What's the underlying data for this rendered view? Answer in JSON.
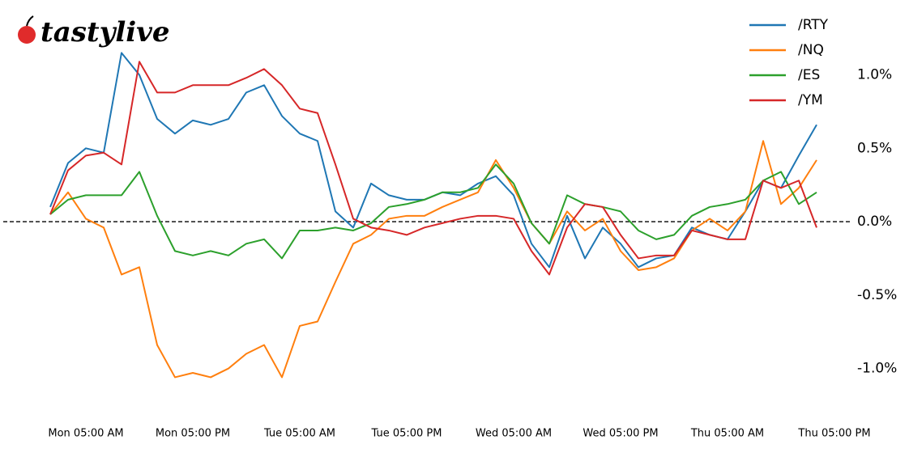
{
  "brand": "tastylive",
  "chart_data": {
    "type": "line",
    "categories": [
      null,
      null,
      "Mon 05:00 AM",
      null,
      null,
      null,
      null,
      null,
      "Mon 05:00 PM",
      null,
      null,
      null,
      null,
      null,
      "Tue 05:00 AM",
      null,
      null,
      null,
      null,
      null,
      "Tue 05:00 PM",
      null,
      null,
      null,
      null,
      null,
      "Wed 05:00 AM",
      null,
      null,
      null,
      null,
      null,
      "Wed 05:00 PM",
      null,
      null,
      null,
      null,
      null,
      "Thu 05:00 AM",
      null,
      null,
      null,
      null,
      null,
      "Thu 05:00 PM"
    ],
    "series": [
      {
        "name": "/RTY",
        "color": "#1f77b4",
        "values": [
          0.1,
          0.4,
          0.5,
          0.47,
          1.15,
          1.0,
          0.7,
          0.6,
          0.69,
          0.66,
          0.7,
          0.88,
          0.93,
          0.72,
          0.6,
          0.55,
          0.07,
          -0.04,
          0.26,
          0.18,
          0.15,
          0.15,
          0.2,
          0.18,
          0.26,
          0.31,
          0.18,
          -0.15,
          -0.31,
          0.04,
          -0.25,
          -0.04,
          -0.15,
          -0.31,
          -0.25,
          -0.23,
          -0.04,
          -0.09,
          -0.12,
          0.07,
          0.28,
          0.23,
          0.45,
          0.66,
          null
        ]
      },
      {
        "name": "/NQ",
        "color": "#ff7f0e",
        "values": [
          0.05,
          0.2,
          0.02,
          -0.04,
          -0.36,
          -0.31,
          -0.84,
          -1.06,
          -1.03,
          -1.06,
          -1.0,
          -0.9,
          -0.84,
          -1.06,
          -0.71,
          -0.68,
          -0.41,
          -0.15,
          -0.09,
          0.02,
          0.04,
          0.04,
          0.1,
          0.15,
          0.2,
          0.42,
          0.23,
          -0.01,
          -0.15,
          0.07,
          -0.06,
          0.02,
          -0.2,
          -0.33,
          -0.31,
          -0.25,
          -0.06,
          0.02,
          -0.06,
          0.07,
          0.55,
          0.12,
          0.23,
          0.42,
          null
        ]
      },
      {
        "name": "/ES",
        "color": "#2ca02c",
        "values": [
          0.05,
          0.15,
          0.18,
          0.18,
          0.18,
          0.34,
          0.04,
          -0.2,
          -0.23,
          -0.2,
          -0.23,
          -0.15,
          -0.12,
          -0.25,
          -0.06,
          -0.06,
          -0.04,
          -0.06,
          -0.01,
          0.1,
          0.12,
          0.15,
          0.2,
          0.2,
          0.23,
          0.39,
          0.26,
          -0.01,
          -0.15,
          0.18,
          0.12,
          0.1,
          0.07,
          -0.06,
          -0.12,
          -0.09,
          0.04,
          0.1,
          0.12,
          0.15,
          0.28,
          0.34,
          0.12,
          0.2,
          null
        ]
      },
      {
        "name": "/YM",
        "color": "#d62728",
        "values": [
          0.05,
          0.35,
          0.45,
          0.47,
          0.39,
          1.09,
          0.88,
          0.88,
          0.93,
          0.93,
          0.93,
          0.98,
          1.04,
          0.93,
          0.77,
          0.74,
          0.39,
          0.02,
          -0.04,
          -0.06,
          -0.09,
          -0.04,
          -0.01,
          0.02,
          0.04,
          0.04,
          0.02,
          -0.2,
          -0.36,
          -0.04,
          0.12,
          0.1,
          -0.09,
          -0.25,
          -0.23,
          -0.23,
          -0.06,
          -0.09,
          -0.12,
          -0.12,
          0.28,
          0.23,
          0.28,
          -0.04,
          null
        ]
      }
    ],
    "ylim": [
      -1.3,
      1.4
    ],
    "yticks": [
      {
        "value": -1.0,
        "label": "-1.0%"
      },
      {
        "value": -0.5,
        "label": "-0.5%"
      },
      {
        "value": 0.0,
        "label": "0.0%"
      },
      {
        "value": 0.5,
        "label": "0.5%"
      },
      {
        "value": 1.0,
        "label": "1.0%"
      }
    ],
    "legend": "upper right"
  }
}
